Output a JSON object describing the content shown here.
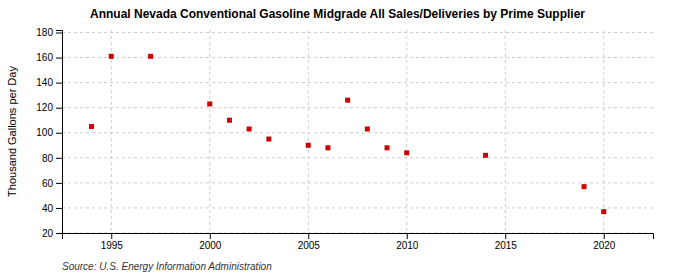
{
  "chart_data": {
    "type": "scatter",
    "title": "Annual Nevada Conventional Gasoline Midgrade All Sales/Deliveries by Prime Supplier",
    "ylabel": "Thousand Gallons per Day",
    "source": "Source: U.S. Energy Information Administration",
    "x": [
      1994,
      1995,
      1997,
      2000,
      2001,
      2002,
      2003,
      2005,
      2006,
      2007,
      2008,
      2009,
      2010,
      2014,
      2019,
      2020
    ],
    "values": [
      105,
      161,
      161,
      123,
      110,
      103,
      95,
      90,
      88,
      126,
      103,
      88,
      84,
      82,
      57,
      37
    ],
    "color": "#cc0000",
    "marker": "square",
    "xlim": [
      1992.5,
      2022.5
    ],
    "ylim": [
      20,
      182
    ],
    "xticks": [
      1995,
      2000,
      2005,
      2010,
      2015,
      2020
    ],
    "yticks": [
      20,
      40,
      60,
      80,
      100,
      120,
      140,
      160,
      180
    ],
    "grid": true
  }
}
